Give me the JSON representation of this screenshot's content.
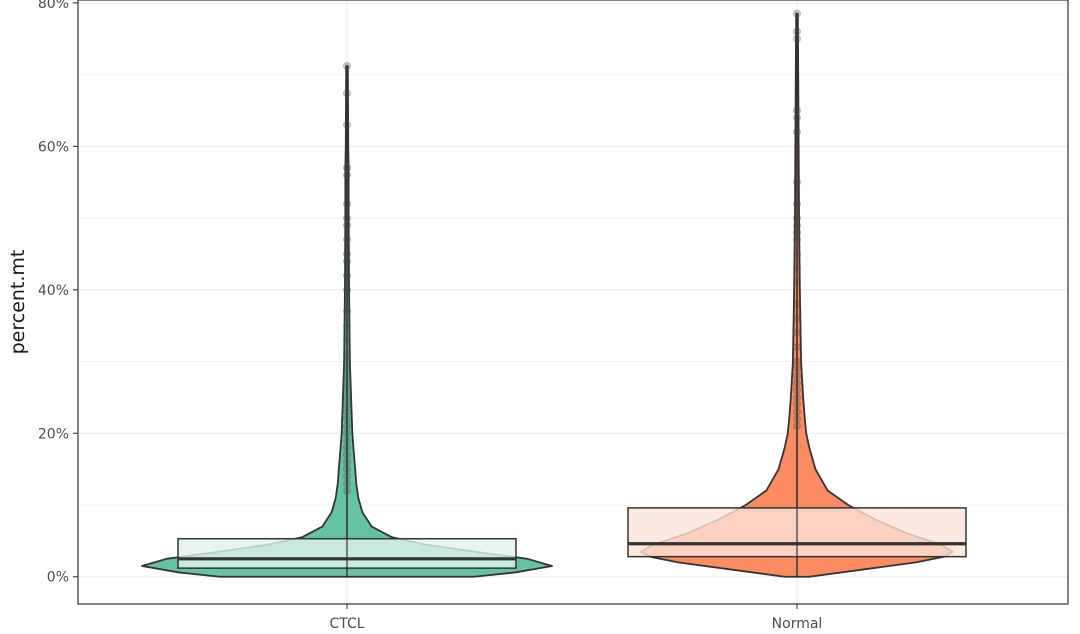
{
  "chart_data": {
    "type": "violin",
    "title": "",
    "xlabel": "",
    "ylabel": "percent.mt",
    "ylim": [
      -3.8,
      80.4
    ],
    "y_ticks": [
      0,
      20,
      40,
      60,
      80
    ],
    "y_tick_labels": [
      "0%",
      "20%",
      "40%",
      "60%",
      "80%"
    ],
    "grid": true,
    "categories": [
      "CTCL",
      "Normal"
    ],
    "colors": {
      "CTCL": "#66c2a5",
      "Normal": "#fc8d62"
    },
    "box_fill": {
      "CTCL": "#e0f3ec",
      "Normal": "#fee4d8"
    },
    "series": [
      {
        "name": "CTCL",
        "box": {
          "q1": 1.2,
          "median": 2.5,
          "q3": 5.3
        },
        "violin_max": 71.2,
        "violin_profile": [
          [
            0,
            0.62
          ],
          [
            0.6,
            0.82
          ],
          [
            1.5,
            1.0
          ],
          [
            2.5,
            0.88
          ],
          [
            3.5,
            0.62
          ],
          [
            4.5,
            0.38
          ],
          [
            5.5,
            0.22
          ],
          [
            7,
            0.12
          ],
          [
            9,
            0.075
          ],
          [
            11,
            0.055
          ],
          [
            13,
            0.045
          ],
          [
            15,
            0.04
          ],
          [
            17,
            0.034
          ],
          [
            20,
            0.026
          ],
          [
            25,
            0.02
          ],
          [
            30,
            0.014
          ],
          [
            40,
            0.01
          ],
          [
            50,
            0.008
          ],
          [
            57,
            0.008
          ],
          [
            60,
            0.006
          ],
          [
            71.2,
            0.004
          ]
        ],
        "outliers": [
          12,
          13,
          14,
          15,
          16,
          17,
          18,
          19,
          20,
          21,
          22,
          23,
          24,
          25,
          26,
          27,
          28,
          29,
          30,
          31,
          33,
          35,
          37,
          40,
          42,
          44,
          45,
          47,
          49,
          50,
          52,
          56,
          57,
          63,
          67.4,
          71.2
        ]
      },
      {
        "name": "Normal",
        "box": {
          "q1": 2.8,
          "median": 4.6,
          "q3": 9.6
        },
        "violin_max": 78.5,
        "violin_profile": [
          [
            0,
            0.06
          ],
          [
            1,
            0.32
          ],
          [
            2,
            0.58
          ],
          [
            2.8,
            0.72
          ],
          [
            3.5,
            0.76
          ],
          [
            4.5,
            0.7
          ],
          [
            6,
            0.54
          ],
          [
            8,
            0.38
          ],
          [
            10,
            0.25
          ],
          [
            12,
            0.15
          ],
          [
            15,
            0.09
          ],
          [
            18,
            0.06
          ],
          [
            20,
            0.045
          ],
          [
            22,
            0.038
          ],
          [
            25,
            0.03
          ],
          [
            30,
            0.02
          ],
          [
            40,
            0.014
          ],
          [
            50,
            0.01
          ],
          [
            60,
            0.008
          ],
          [
            70,
            0.006
          ],
          [
            78.5,
            0.004
          ]
        ],
        "outliers": [
          21,
          22,
          23,
          24,
          25,
          26,
          27,
          28,
          29,
          30,
          32,
          34,
          36,
          38,
          41,
          43,
          45,
          47,
          48,
          49,
          50,
          52,
          55,
          62,
          64,
          65,
          75,
          76,
          78.5
        ]
      }
    ]
  }
}
